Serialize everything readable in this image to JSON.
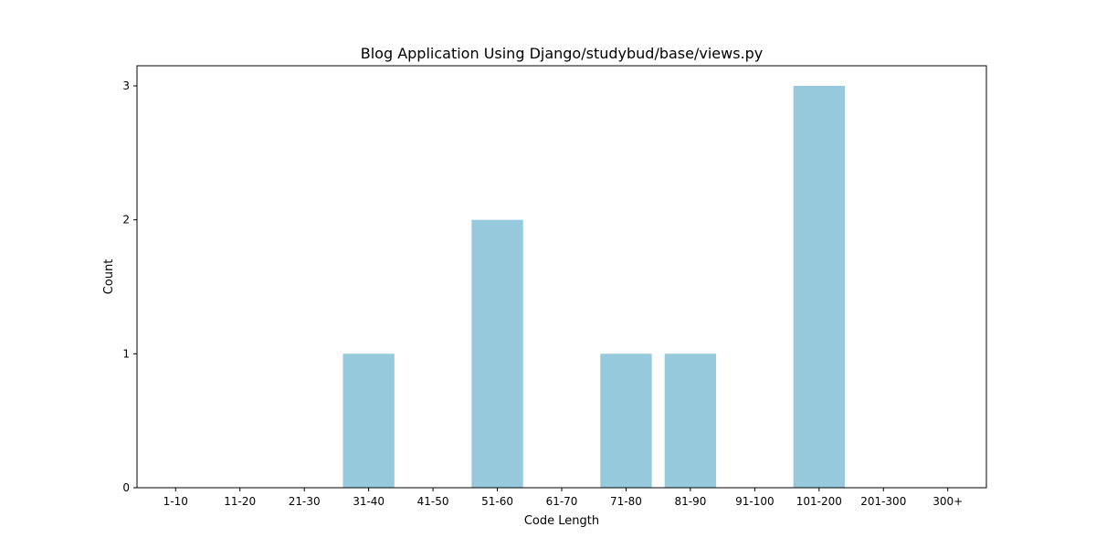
{
  "chart_data": {
    "type": "bar",
    "title": "Blog Application Using Django/studybud/base/views.py",
    "xlabel": "Code Length",
    "ylabel": "Count",
    "categories": [
      "1-10",
      "11-20",
      "21-30",
      "31-40",
      "41-50",
      "51-60",
      "61-70",
      "71-80",
      "81-90",
      "91-100",
      "101-200",
      "201-300",
      "300+"
    ],
    "values": [
      0,
      0,
      0,
      1,
      0,
      2,
      0,
      1,
      1,
      0,
      3,
      0,
      0
    ],
    "ylim": [
      0,
      3.15
    ],
    "yticks": [
      0,
      1,
      2,
      3
    ],
    "bar_color": "#96c9dc",
    "grid": false,
    "legend": false
  }
}
